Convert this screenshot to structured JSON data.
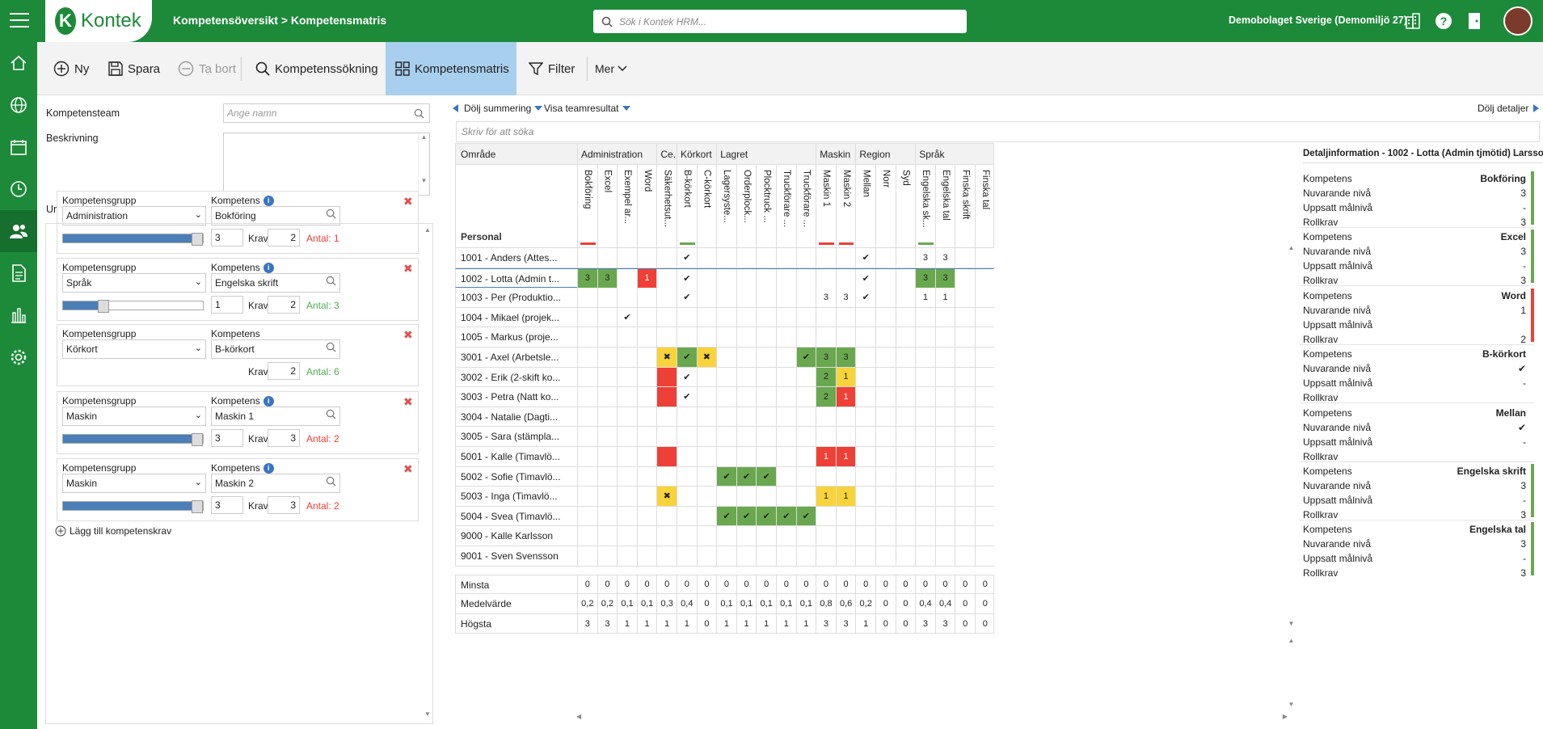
{
  "header": {
    "app_name": "Kontek",
    "breadcrumb": "Kompetensöversikt > Kompetensmatris",
    "search_placeholder": "Sök i Kontek HRM...",
    "company": "Demobolaget Sverige (Demomiljö 27)"
  },
  "toolbar": {
    "new": "Ny",
    "save": "Spara",
    "delete": "Ta bort",
    "search": "Kompetenssökning",
    "matrix": "Kompetensmatris",
    "filter": "Filter",
    "more": "Mer"
  },
  "left": {
    "team_label": "Kompetensteam",
    "team_placeholder": "Ange namn",
    "desc_label": "Beskrivning",
    "urval_label": "Urval",
    "group_label": "Kompetensgrupp",
    "comp_label": "Kompetens",
    "krav_label": "Krav:",
    "add_label": "Lägg till kompetenskrav",
    "cards": [
      {
        "group": "Administration",
        "comp": "Bokföring",
        "level": "3",
        "krav": "2",
        "antal": "Antal: 1",
        "ok": false,
        "fill": 1.0,
        "info": true,
        "slider": true
      },
      {
        "group": "Språk",
        "comp": "Engelska skrift",
        "level": "1",
        "krav": "2",
        "antal": "Antal: 3",
        "ok": true,
        "fill": 0.33,
        "info": true,
        "slider": true
      },
      {
        "group": "Körkort",
        "comp": "B-körkort",
        "level": "",
        "krav": "2",
        "antal": "Antal: 6",
        "ok": true,
        "fill": 0,
        "info": false,
        "slider": false
      },
      {
        "group": "Maskin",
        "comp": "Maskin 1",
        "level": "3",
        "krav": "3",
        "antal": "Antal: 2",
        "ok": false,
        "fill": 1.0,
        "info": true,
        "slider": true
      },
      {
        "group": "Maskin",
        "comp": "Maskin 2",
        "level": "3",
        "krav": "3",
        "antal": "Antal: 2",
        "ok": false,
        "fill": 1.0,
        "info": true,
        "slider": true
      }
    ]
  },
  "matrix": {
    "hide_summary": "Dölj summering",
    "show_team": "Visa teamresultat",
    "hide_details": "Dölj detaljer",
    "filter_placeholder": "Skriv för att söka",
    "area_label": "Område",
    "personal_label": "Personal",
    "groups": [
      {
        "label": "Administration",
        "span": 4
      },
      {
        "label": "Ce...",
        "span": 1
      },
      {
        "label": "Körkort",
        "span": 2
      },
      {
        "label": "Lagret",
        "span": 5
      },
      {
        "label": "Maskin",
        "span": 2
      },
      {
        "label": "Region",
        "span": 3
      },
      {
        "label": "Språk",
        "span": 4
      }
    ],
    "columns": [
      "Bokföring",
      "Excel",
      "Exempel ar...",
      "Word",
      "Säkerhetsut...",
      "B-körkort",
      "C-körkort",
      "Lagersyste...",
      "Orderplock...",
      "Plocktruck ...",
      "Truckförare ...",
      "Truckförare ...",
      "Maskin 1",
      "Maskin 2",
      "Mellan",
      "Norr",
      "Syd",
      "Engelska sk...",
      "Engelska tal",
      "Finska skrift",
      "Finska tal"
    ],
    "col_marks": [
      "r",
      "",
      "",
      "",
      "",
      "g",
      "",
      "",
      "",
      "",
      "",
      "",
      "r",
      "r",
      "",
      "",
      "",
      "g",
      "",
      "",
      ""
    ],
    "people": [
      {
        "name": "1001 - Anders (Attes...",
        "cells": [
          "",
          "",
          "",
          "",
          "",
          "c",
          "",
          "",
          "",
          "",
          "",
          "",
          "",
          "",
          "c",
          "",
          "",
          "3",
          "3",
          "",
          ""
        ],
        "colors": [
          "",
          "",
          "",
          "",
          "",
          "",
          "",
          "",
          "",
          "",
          "",
          "",
          "",
          "",
          "",
          "",
          "",
          "",
          "",
          "",
          ""
        ]
      },
      {
        "name": "1002 - Lotta (Admin t...",
        "cells": [
          "3",
          "3",
          "",
          "1",
          "",
          "c",
          "",
          "",
          "",
          "",
          "",
          "",
          "",
          "",
          "c",
          "",
          "",
          "3",
          "3",
          "",
          ""
        ],
        "colors": [
          "g",
          "g",
          "",
          "r",
          "",
          "",
          "",
          "",
          "",
          "",
          "",
          "",
          "",
          "",
          "",
          "",
          "",
          "g",
          "g",
          "",
          ""
        ]
      },
      {
        "name": "1003 - Per (Produktio...",
        "cells": [
          "",
          "",
          "",
          "",
          "",
          "c",
          "",
          "",
          "",
          "",
          "",
          "",
          "3",
          "3",
          "c",
          "",
          "",
          "1",
          "1",
          "",
          ""
        ],
        "colors": [
          "",
          "",
          "",
          "",
          "",
          "",
          "",
          "",
          "",
          "",
          "",
          "",
          "",
          "",
          "",
          "",
          "",
          "",
          "",
          "",
          ""
        ]
      },
      {
        "name": "1004 - Mikael (projek...",
        "cells": [
          "",
          "",
          "c",
          "",
          "",
          "",
          "",
          "",
          "",
          "",
          "",
          "",
          "",
          "",
          "",
          "",
          "",
          "",
          "",
          "",
          ""
        ],
        "colors": [
          "",
          "",
          "",
          "",
          "",
          "",
          "",
          "",
          "",
          "",
          "",
          "",
          "",
          "",
          "",
          "",
          "",
          "",
          "",
          "",
          ""
        ]
      },
      {
        "name": "1005 - Markus (proje...",
        "cells": [
          "",
          "",
          "",
          "",
          "",
          "",
          "",
          "",
          "",
          "",
          "",
          "",
          "",
          "",
          "",
          "",
          "",
          "",
          "",
          "",
          ""
        ],
        "colors": [
          "",
          "",
          "",
          "",
          "",
          "",
          "",
          "",
          "",
          "",
          "",
          "",
          "",
          "",
          "",
          "",
          "",
          "",
          "",
          "",
          ""
        ]
      },
      {
        "name": "3001 - Axel (Arbetsle...",
        "cells": [
          "",
          "",
          "",
          "",
          "x",
          "c",
          "x",
          "",
          "",
          "",
          "",
          "c",
          "3",
          "3",
          "",
          "",
          "",
          "",
          "",
          "",
          ""
        ],
        "colors": [
          "",
          "",
          "",
          "",
          "y",
          "g",
          "y",
          "",
          "",
          "",
          "",
          "g",
          "g",
          "g",
          "",
          "",
          "",
          "",
          "",
          "",
          ""
        ]
      },
      {
        "name": "3002 - Erik (2-skift ko...",
        "cells": [
          "",
          "",
          "",
          "",
          "",
          "c",
          "",
          "",
          "",
          "",
          "",
          "",
          "2",
          "1",
          "",
          "",
          "",
          "",
          "",
          "",
          ""
        ],
        "colors": [
          "",
          "",
          "",
          "",
          "r",
          "",
          "",
          "",
          "",
          "",
          "",
          "",
          "g",
          "y",
          "",
          "",
          "",
          "",
          "",
          "",
          ""
        ]
      },
      {
        "name": "3003 - Petra (Natt ko...",
        "cells": [
          "",
          "",
          "",
          "",
          "",
          "c",
          "",
          "",
          "",
          "",
          "",
          "",
          "2",
          "1",
          "",
          "",
          "",
          "",
          "",
          "",
          ""
        ],
        "colors": [
          "",
          "",
          "",
          "",
          "r",
          "",
          "",
          "",
          "",
          "",
          "",
          "",
          "g",
          "r",
          "",
          "",
          "",
          "",
          "",
          "",
          ""
        ]
      },
      {
        "name": "3004 - Natalie (Dagti...",
        "cells": [
          "",
          "",
          "",
          "",
          "",
          "",
          "",
          "",
          "",
          "",
          "",
          "",
          "",
          "",
          "",
          "",
          "",
          "",
          "",
          "",
          ""
        ],
        "colors": [
          "",
          "",
          "",
          "",
          "",
          "",
          "",
          "",
          "",
          "",
          "",
          "",
          "",
          "",
          "",
          "",
          "",
          "",
          "",
          "",
          ""
        ]
      },
      {
        "name": "3005 - Sara (stämpla...",
        "cells": [
          "",
          "",
          "",
          "",
          "",
          "",
          "",
          "",
          "",
          "",
          "",
          "",
          "",
          "",
          "",
          "",
          "",
          "",
          "",
          "",
          ""
        ],
        "colors": [
          "",
          "",
          "",
          "",
          "",
          "",
          "",
          "",
          "",
          "",
          "",
          "",
          "",
          "",
          "",
          "",
          "",
          "",
          "",
          "",
          ""
        ]
      },
      {
        "name": "5001 - Kalle (Timavlö...",
        "cells": [
          "",
          "",
          "",
          "",
          "",
          "",
          "",
          "",
          "",
          "",
          "",
          "",
          "1",
          "1",
          "",
          "",
          "",
          "",
          "",
          "",
          ""
        ],
        "colors": [
          "",
          "",
          "",
          "",
          "r",
          "",
          "",
          "",
          "",
          "",
          "",
          "",
          "r",
          "r",
          "",
          "",
          "",
          "",
          "",
          "",
          ""
        ]
      },
      {
        "name": "5002 - Sofie (Timavlö...",
        "cells": [
          "",
          "",
          "",
          "",
          "",
          "",
          "",
          "c",
          "c",
          "c",
          "",
          "",
          "",
          "",
          "",
          "",
          "",
          "",
          "",
          "",
          ""
        ],
        "colors": [
          "",
          "",
          "",
          "",
          "",
          "",
          "",
          "g",
          "g",
          "g",
          "",
          "",
          "",
          "",
          "",
          "",
          "",
          "",
          "",
          "",
          ""
        ]
      },
      {
        "name": "5003 - Inga (Timavlö...",
        "cells": [
          "",
          "",
          "",
          "",
          "x",
          "",
          "",
          "",
          "",
          "",
          "",
          "",
          "1",
          "1",
          "",
          "",
          "",
          "",
          "",
          "",
          ""
        ],
        "colors": [
          "",
          "",
          "",
          "",
          "y",
          "",
          "",
          "",
          "",
          "",
          "",
          "",
          "y",
          "y",
          "",
          "",
          "",
          "",
          "",
          "",
          ""
        ]
      },
      {
        "name": "5004 - Svea (Timavlö...",
        "cells": [
          "",
          "",
          "",
          "",
          "",
          "",
          "",
          "c",
          "c",
          "c",
          "c",
          "c",
          "",
          "",
          "",
          "",
          "",
          "",
          "",
          "",
          ""
        ],
        "colors": [
          "",
          "",
          "",
          "",
          "",
          "",
          "",
          "g",
          "g",
          "g",
          "g",
          "g",
          "",
          "",
          "",
          "",
          "",
          "",
          "",
          "",
          ""
        ]
      },
      {
        "name": "9000 - Kalle Karlsson",
        "cells": [
          "",
          "",
          "",
          "",
          "",
          "",
          "",
          "",
          "",
          "",
          "",
          "",
          "",
          "",
          "",
          "",
          "",
          "",
          "",
          "",
          ""
        ],
        "colors": [
          "",
          "",
          "",
          "",
          "",
          "",
          "",
          "",
          "",
          "",
          "",
          "",
          "",
          "",
          "",
          "",
          "",
          "",
          "",
          "",
          ""
        ]
      },
      {
        "name": "9001 - Sven Svensson",
        "cells": [
          "",
          "",
          "",
          "",
          "",
          "",
          "",
          "",
          "",
          "",
          "",
          "",
          "",
          "",
          "",
          "",
          "",
          "",
          "",
          "",
          ""
        ],
        "colors": [
          "",
          "",
          "",
          "",
          "",
          "",
          "",
          "",
          "",
          "",
          "",
          "",
          "",
          "",
          "",
          "",
          "",
          "",
          "",
          "",
          ""
        ]
      }
    ],
    "summary": [
      {
        "label": "Minsta",
        "values": [
          "0",
          "0",
          "0",
          "0",
          "0",
          "0",
          "0",
          "0",
          "0",
          "0",
          "0",
          "0",
          "0",
          "0",
          "0",
          "0",
          "0",
          "0",
          "0",
          "0",
          "0"
        ]
      },
      {
        "label": "Medelvärde",
        "values": [
          "0,2",
          "0,2",
          "0,1",
          "0,1",
          "0,3",
          "0,4",
          "0",
          "0,1",
          "0,1",
          "0,1",
          "0,1",
          "0,1",
          "0,8",
          "0,6",
          "0,2",
          "0",
          "0",
          "0,4",
          "0,4",
          "0",
          "0"
        ]
      },
      {
        "label": "Högsta",
        "values": [
          "3",
          "3",
          "1",
          "1",
          "1",
          "1",
          "0",
          "1",
          "1",
          "1",
          "1",
          "1",
          "3",
          "3",
          "1",
          "0",
          "0",
          "3",
          "3",
          "0",
          "0"
        ]
      }
    ]
  },
  "detail": {
    "title": "Detaljinformation - 1002 - Lotta (Admin tjmötid) Larsso",
    "labels": {
      "comp": "Kompetens",
      "current": "Nuvarande nivå",
      "target": "Uppsatt målnivå",
      "role": "Rollkrav"
    },
    "items": [
      {
        "name": "Bokföring",
        "current": "3",
        "target": "-",
        "role": "3",
        "bar": "g"
      },
      {
        "name": "Excel",
        "current": "3",
        "target": "-",
        "role": "3",
        "bar": "g"
      },
      {
        "name": "Word",
        "current": "1",
        "target": "",
        "role": "2",
        "bar": "r"
      },
      {
        "name": "B-körkort",
        "current": "✔",
        "target": "-",
        "role": "",
        "bar": ""
      },
      {
        "name": "Mellan",
        "current": "✔",
        "target": "-",
        "role": "",
        "bar": ""
      },
      {
        "name": "Engelska skrift",
        "current": "3",
        "target": "-",
        "role": "3",
        "bar": "g"
      },
      {
        "name": "Engelska tal",
        "current": "3",
        "target": "-",
        "role": "3",
        "bar": "g"
      }
    ]
  },
  "colors": {
    "green": "#6aa84f",
    "red": "#ee4036",
    "yellow": "#f9d33a",
    "brand": "#1d8a3a"
  }
}
